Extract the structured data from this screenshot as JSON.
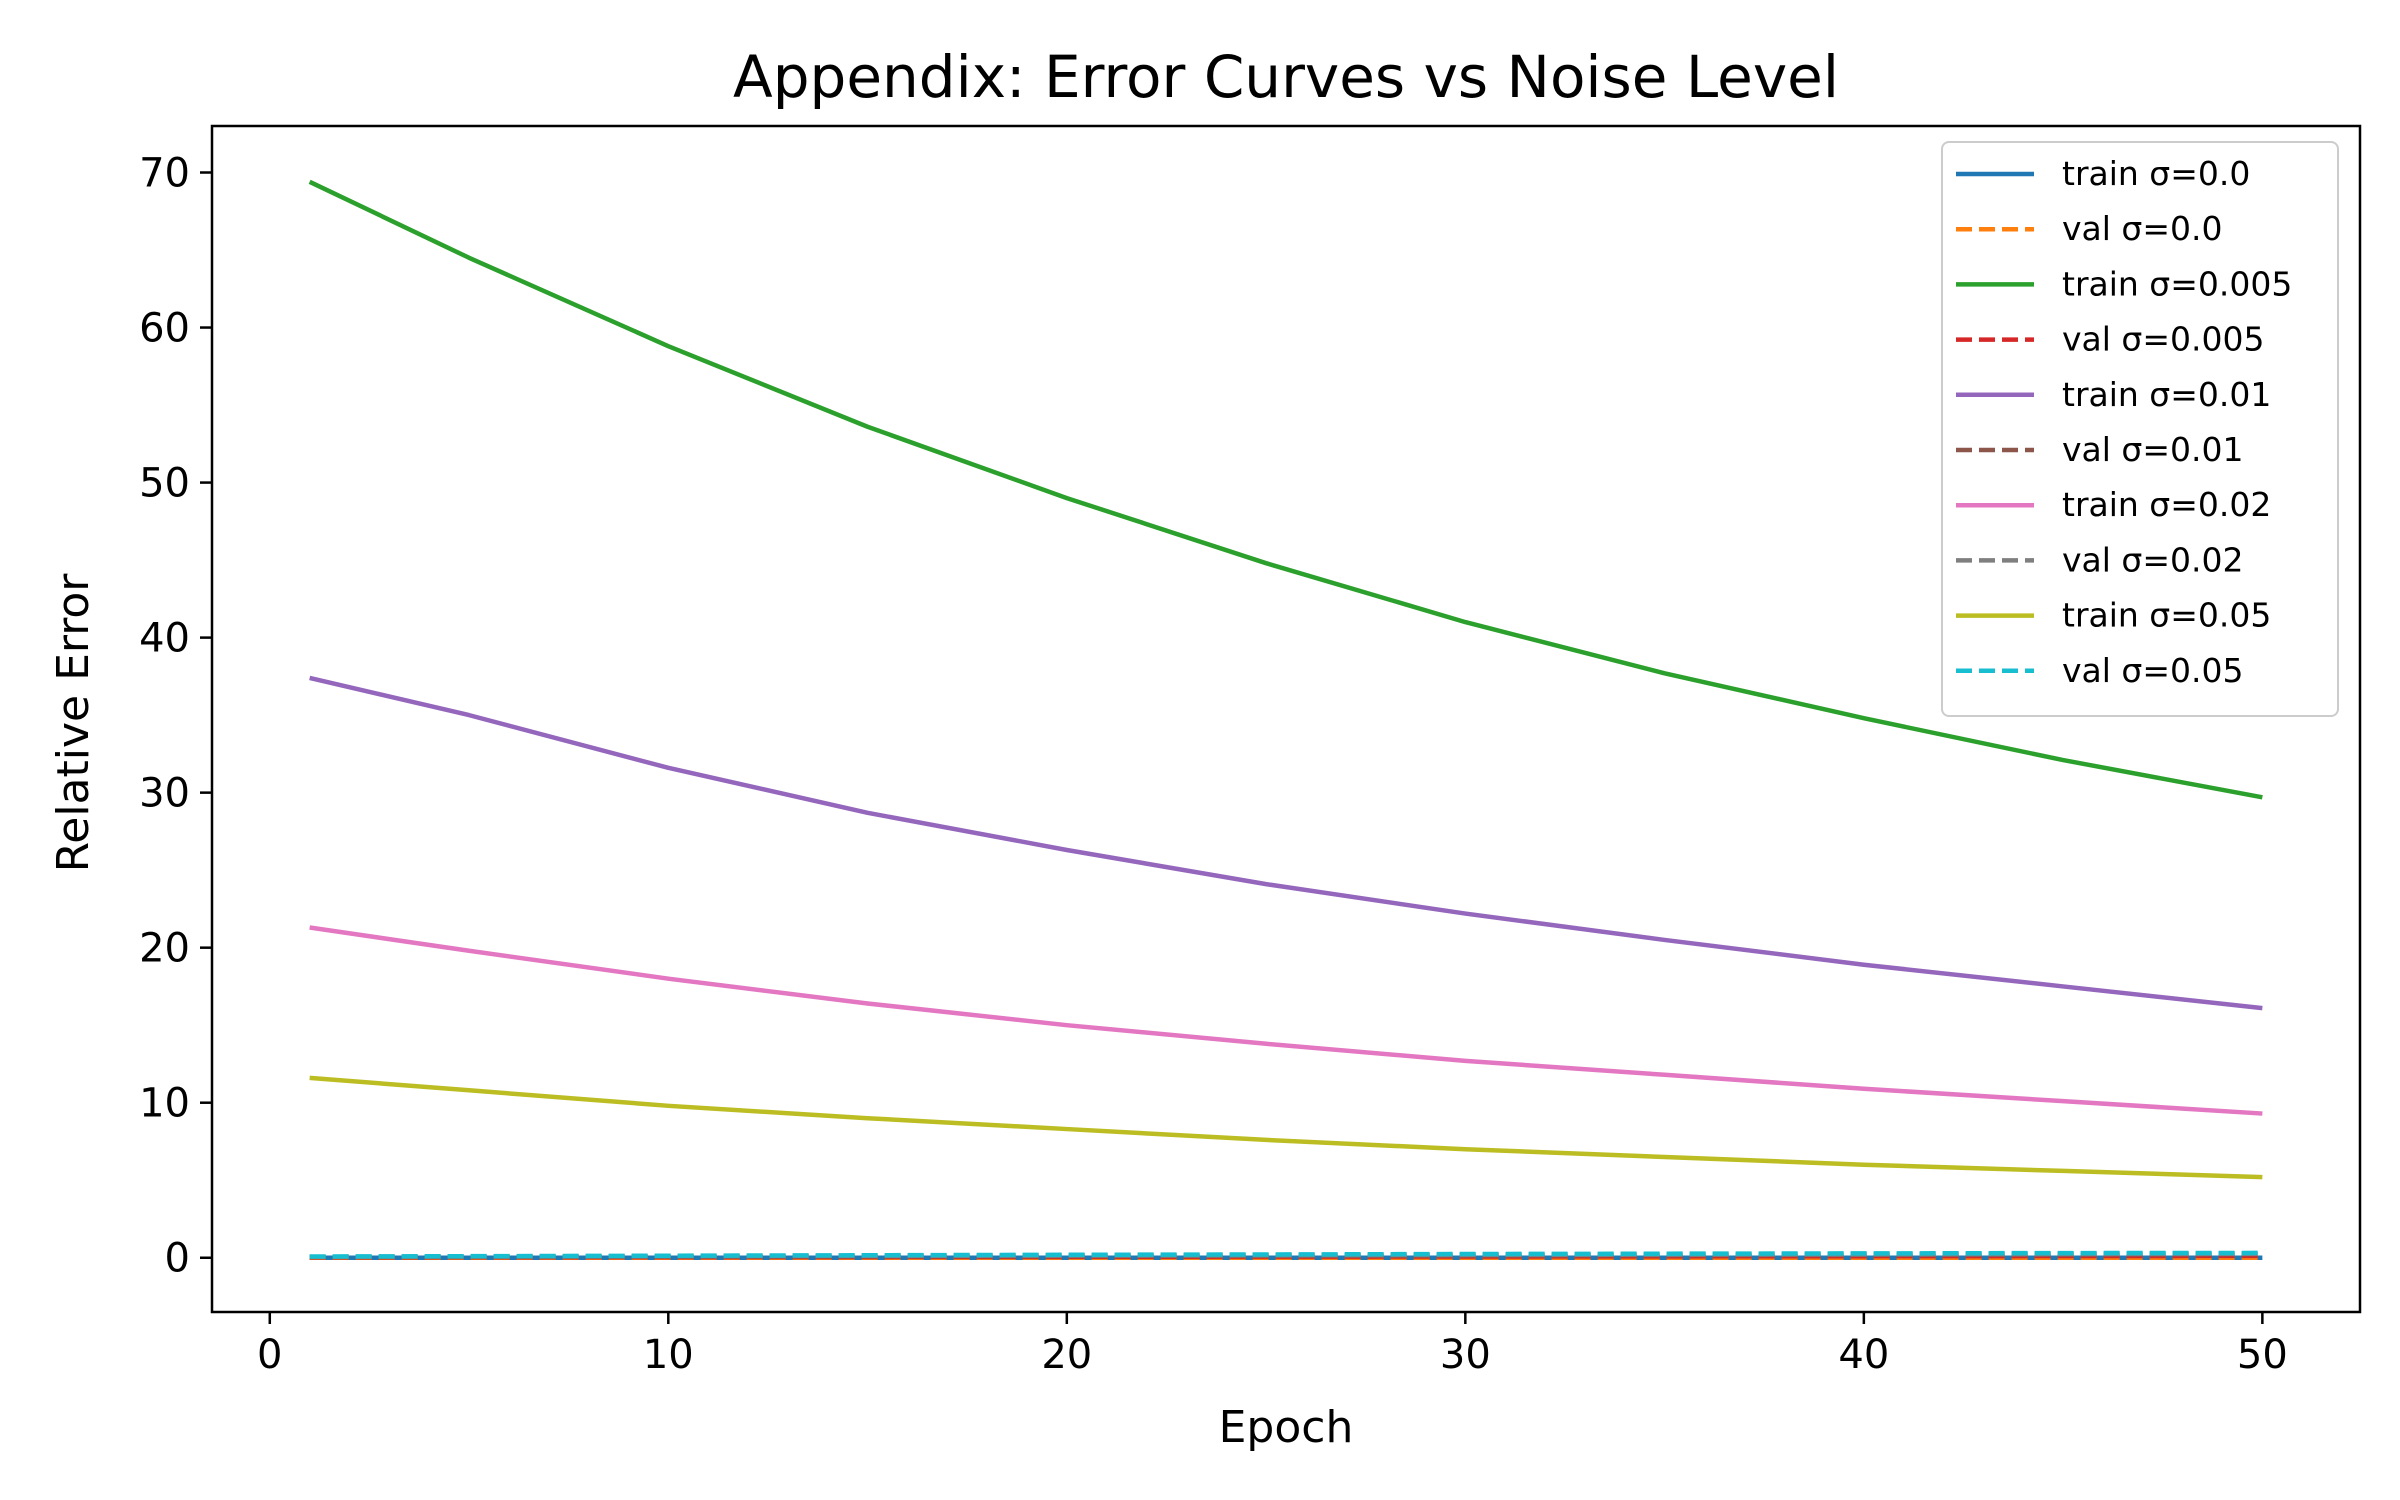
{
  "chart_data": {
    "type": "line",
    "title": "Appendix: Error Curves vs Noise Level",
    "xlabel": "Epoch",
    "ylabel": "Relative Error",
    "xlim": [
      -1.45,
      52.45
    ],
    "ylim": [
      -3.5,
      73.0
    ],
    "xticks": [
      0,
      10,
      20,
      30,
      40,
      50
    ],
    "yticks": [
      0,
      10,
      20,
      30,
      40,
      50,
      60,
      70
    ],
    "grid": false,
    "legend_position": "top-right",
    "x": [
      1,
      5,
      10,
      15,
      20,
      25,
      30,
      35,
      40,
      45,
      50
    ],
    "series": [
      {
        "name": "train σ=0.0",
        "style": "solid",
        "color": "#1f77b4",
        "values": [
          0.0,
          0.0,
          0.0,
          0.0,
          0.0,
          0.0,
          0.0,
          0.0,
          0.0,
          0.0,
          0.0
        ]
      },
      {
        "name": "val σ=0.0",
        "style": "dashed",
        "color": "#ff7f0e",
        "values": [
          0.0,
          0.0,
          0.0,
          0.0,
          0.0,
          0.0,
          0.0,
          0.0,
          0.0,
          0.0,
          0.0
        ]
      },
      {
        "name": "train σ=0.005",
        "style": "solid",
        "color": "#2ca02c",
        "values": [
          69.4,
          64.5,
          58.8,
          53.6,
          49.0,
          44.8,
          41.0,
          37.7,
          34.8,
          32.1,
          29.7
        ]
      },
      {
        "name": "val σ=0.005",
        "style": "dashed",
        "color": "#d62728",
        "values": [
          0.02,
          0.03,
          0.04,
          0.05,
          0.06,
          0.07,
          0.08,
          0.09,
          0.1,
          0.11,
          0.12
        ]
      },
      {
        "name": "train σ=0.01",
        "style": "solid",
        "color": "#9467bd",
        "values": [
          37.4,
          35.0,
          31.6,
          28.7,
          26.3,
          24.1,
          22.2,
          20.5,
          18.9,
          17.5,
          16.1
        ]
      },
      {
        "name": "val σ=0.01",
        "style": "dashed",
        "color": "#8c564b",
        "values": [
          0.04,
          0.05,
          0.07,
          0.09,
          0.11,
          0.13,
          0.15,
          0.17,
          0.19,
          0.21,
          0.23
        ]
      },
      {
        "name": "train σ=0.02",
        "style": "solid",
        "color": "#e377c2",
        "values": [
          21.3,
          19.8,
          18.0,
          16.4,
          15.0,
          13.8,
          12.7,
          11.8,
          10.9,
          10.1,
          9.3
        ]
      },
      {
        "name": "val σ=0.02",
        "style": "dashed",
        "color": "#7f7f7f",
        "values": [
          0.06,
          0.08,
          0.1,
          0.12,
          0.14,
          0.16,
          0.18,
          0.2,
          0.22,
          0.24,
          0.26
        ]
      },
      {
        "name": "train σ=0.05",
        "style": "solid",
        "color": "#bcbd22",
        "values": [
          11.6,
          10.8,
          9.8,
          9.0,
          8.3,
          7.6,
          7.0,
          6.5,
          6.0,
          5.6,
          5.2
        ]
      },
      {
        "name": "val σ=0.05",
        "style": "dashed",
        "color": "#17becf",
        "values": [
          0.08,
          0.1,
          0.13,
          0.16,
          0.19,
          0.21,
          0.24,
          0.26,
          0.28,
          0.3,
          0.31
        ]
      }
    ]
  }
}
